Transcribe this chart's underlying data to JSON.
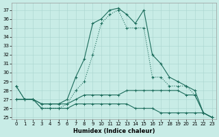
{
  "xlabel": "Humidex (Indice chaleur)",
  "xlim": [
    -0.5,
    23.5
  ],
  "ylim": [
    24.8,
    37.8
  ],
  "yticks": [
    25,
    26,
    27,
    28,
    29,
    30,
    31,
    32,
    33,
    34,
    35,
    36,
    37
  ],
  "xticks": [
    0,
    1,
    2,
    3,
    4,
    5,
    6,
    7,
    8,
    9,
    10,
    11,
    12,
    13,
    14,
    15,
    16,
    17,
    18,
    19,
    20,
    21,
    22,
    23
  ],
  "bg_color": "#c8ece6",
  "grid_color": "#a8d4ce",
  "line_color": "#1a6b5a",
  "line1": [
    28.5,
    27.0,
    27.0,
    26.5,
    26.5,
    26.5,
    27.0,
    29.5,
    31.5,
    35.5,
    36.0,
    37.0,
    37.2,
    36.5,
    35.5,
    37.0,
    32.0,
    31.0,
    29.5,
    29.0,
    28.5,
    28.0,
    25.5,
    25.0
  ],
  "line2": [
    28.5,
    27.0,
    27.0,
    26.0,
    26.0,
    26.0,
    26.5,
    28.0,
    29.0,
    32.0,
    35.5,
    36.5,
    37.0,
    35.0,
    35.0,
    35.0,
    29.5,
    29.5,
    28.5,
    28.5,
    28.5,
    27.5,
    25.5,
    25.0
  ],
  "line3": [
    27.0,
    27.0,
    27.0,
    26.5,
    26.5,
    26.5,
    26.5,
    27.0,
    27.5,
    27.5,
    27.5,
    27.5,
    27.5,
    28.0,
    28.0,
    28.0,
    28.0,
    28.0,
    28.0,
    28.0,
    27.5,
    27.5,
    25.5,
    25.0
  ],
  "line4": [
    27.0,
    27.0,
    27.0,
    26.0,
    26.0,
    26.0,
    26.0,
    26.5,
    26.5,
    26.5,
    26.5,
    26.5,
    26.5,
    26.5,
    26.0,
    26.0,
    26.0,
    25.5,
    25.5,
    25.5,
    25.5,
    25.5,
    25.5,
    25.0
  ]
}
